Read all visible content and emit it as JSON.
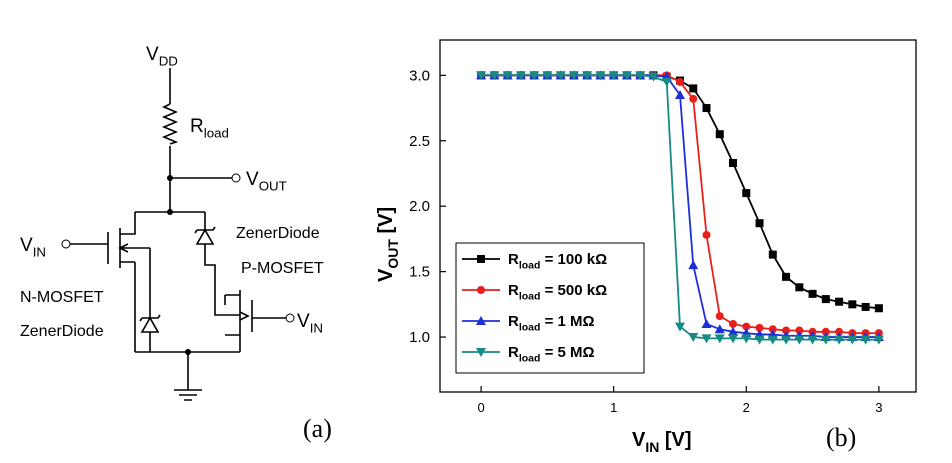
{
  "circuit": {
    "vdd": [
      "V",
      "DD"
    ],
    "rload": [
      "R",
      "load"
    ],
    "vout": [
      "V",
      "OUT"
    ],
    "vin_left": [
      "V",
      "IN"
    ],
    "zener_right": "ZenerDiode",
    "pmos": "P-MOSFET",
    "nmos": "N-MOSFET",
    "zener_left": "ZenerDiode",
    "vin_right": [
      "V",
      "IN"
    ],
    "panel": "(a)"
  },
  "chart_data": {
    "type": "line",
    "panel": "(b)",
    "xlabel": [
      "V",
      "IN",
      " [V]"
    ],
    "ylabel": [
      "V",
      "OUT",
      " [V]"
    ],
    "x": [
      0,
      0.1,
      0.2,
      0.3,
      0.4,
      0.5,
      0.6,
      0.7,
      0.8,
      0.9,
      1.0,
      1.1,
      1.2,
      1.3,
      1.4,
      1.5,
      1.6,
      1.7,
      1.8,
      1.9,
      2.0,
      2.1,
      2.2,
      2.3,
      2.4,
      2.5,
      2.6,
      2.7,
      2.8,
      2.9,
      3.0
    ],
    "series": [
      {
        "name": [
          "R",
          "load",
          " = 100 kΩ"
        ],
        "color": "#000000",
        "marker": "square",
        "values": [
          3.0,
          3.0,
          3.0,
          3.0,
          3.0,
          3.0,
          3.0,
          3.0,
          3.0,
          3.0,
          3.0,
          3.0,
          3.0,
          3.0,
          2.99,
          2.96,
          2.9,
          2.75,
          2.55,
          2.33,
          2.1,
          1.87,
          1.63,
          1.46,
          1.38,
          1.33,
          1.29,
          1.27,
          1.25,
          1.23,
          1.22
        ]
      },
      {
        "name": [
          "R",
          "load",
          " = 500 kΩ"
        ],
        "color": "#e8201c",
        "marker": "circle",
        "values": [
          3.0,
          3.0,
          3.0,
          3.0,
          3.0,
          3.0,
          3.0,
          3.0,
          3.0,
          3.0,
          3.0,
          3.0,
          3.0,
          3.0,
          3.0,
          2.95,
          2.82,
          1.78,
          1.16,
          1.1,
          1.08,
          1.07,
          1.06,
          1.05,
          1.05,
          1.04,
          1.04,
          1.04,
          1.03,
          1.03,
          1.03
        ]
      },
      {
        "name": [
          "R",
          "load",
          " = 1 MΩ"
        ],
        "color": "#1f2fd8",
        "marker": "triangle-up",
        "values": [
          3.0,
          3.0,
          3.0,
          3.0,
          3.0,
          3.0,
          3.0,
          3.0,
          3.0,
          3.0,
          3.0,
          3.0,
          3.0,
          3.0,
          2.99,
          2.85,
          1.55,
          1.1,
          1.06,
          1.04,
          1.03,
          1.02,
          1.02,
          1.01,
          1.01,
          1.01,
          1.0,
          1.0,
          1.0,
          1.0,
          1.0
        ]
      },
      {
        "name": [
          "R",
          "load",
          " = 5 MΩ"
        ],
        "color": "#168a85",
        "marker": "triangle-down",
        "values": [
          3.0,
          3.0,
          3.0,
          3.0,
          3.0,
          3.0,
          3.0,
          3.0,
          3.0,
          3.0,
          3.0,
          3.0,
          3.0,
          2.99,
          2.95,
          1.08,
          1.0,
          0.99,
          0.99,
          0.99,
          0.99,
          0.98,
          0.98,
          0.98,
          0.98,
          0.98,
          0.98,
          0.98,
          0.98,
          0.98,
          0.98
        ]
      }
    ],
    "xlim": [
      -0.31,
      3.28
    ],
    "ylim": [
      0.58,
      3.27
    ],
    "xticks": [
      0,
      1,
      2,
      3
    ],
    "yticks": [
      {
        "value": 1.0,
        "label": "1.0"
      },
      {
        "value": 1.5,
        "label": "1.5"
      },
      {
        "value": 2.0,
        "label": "2.0"
      },
      {
        "value": 2.5,
        "label": "2.5"
      },
      {
        "value": 3.0,
        "label": "3.0"
      }
    ],
    "legend": "lower-left"
  }
}
